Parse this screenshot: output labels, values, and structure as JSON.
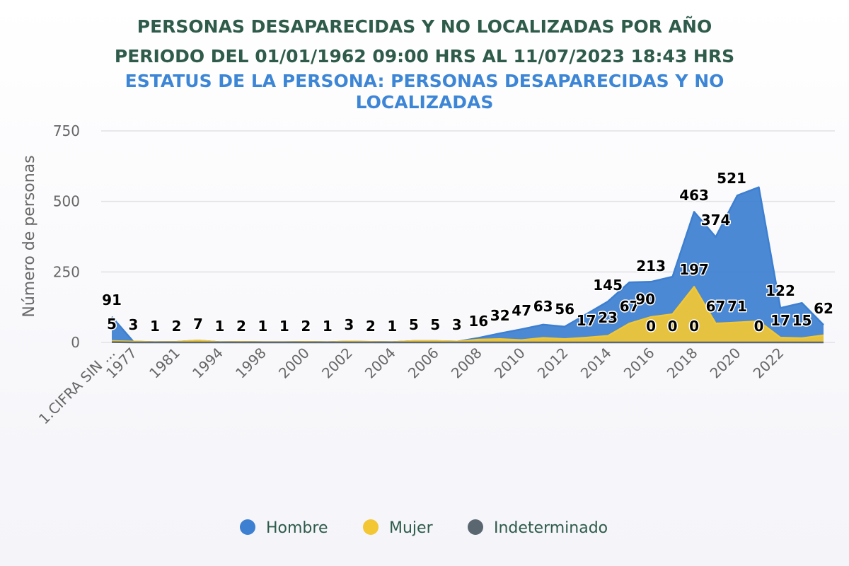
{
  "chart_data": {
    "type": "area",
    "title_lines": [
      "PERSONAS DESAPARECIDAS Y NO LOCALIZADAS POR AÑO",
      "PERIODO DEL 01/01/1962 09:00 HRS AL 11/07/2023 18:43 HRS"
    ],
    "subtitle_lines": [
      "ESTATUS DE LA PERSONA: PERSONAS DESAPARECIDAS Y NO",
      "LOCALIZADAS"
    ],
    "ylabel": "Número de personas",
    "ylim": [
      0,
      750
    ],
    "yticks": [
      "0",
      "250",
      "500",
      "750"
    ],
    "x_tick_labels": [
      "1.CIFRA SIN ...",
      "1977",
      "1981",
      "1994",
      "1998",
      "2000",
      "2002",
      "2004",
      "2006",
      "2008",
      "2010",
      "2012",
      "2014",
      "2016",
      "2018",
      "2020",
      "2022"
    ],
    "grid": true,
    "legend_position": "bottom-center",
    "point_count": 34,
    "series": [
      {
        "name": "Hombre",
        "color": "#3d7fd0",
        "values": [
          91,
          3,
          1,
          2,
          7,
          1,
          2,
          1,
          1,
          2,
          1,
          3,
          2,
          1,
          5,
          5,
          3,
          16,
          32,
          47,
          63,
          56,
          100,
          145,
          213,
          215,
          233,
          463,
          374,
          521,
          550,
          122,
          140,
          62
        ]
      },
      {
        "name": "Mujer",
        "color": "#f2c733",
        "values": [
          5,
          3,
          1,
          2,
          7,
          1,
          2,
          1,
          1,
          2,
          1,
          3,
          2,
          1,
          5,
          5,
          3,
          10,
          12,
          8,
          16,
          12,
          17,
          23,
          67,
          90,
          100,
          197,
          67,
          71,
          75,
          17,
          15,
          25
        ]
      },
      {
        "name": "Indeterminado",
        "color": "#5b6770",
        "values": [
          1,
          0,
          0,
          0,
          0,
          0,
          0,
          0,
          0,
          0,
          0,
          0,
          0,
          0,
          0,
          0,
          0,
          0,
          0,
          0,
          0,
          0,
          0,
          0,
          0,
          0,
          0,
          0,
          0,
          0,
          0,
          0,
          0,
          0
        ]
      }
    ],
    "data_labels": [
      {
        "index": 0,
        "text": "91"
      },
      {
        "index": 0,
        "text": "5"
      },
      {
        "index": 1,
        "text": "3"
      },
      {
        "index": 2,
        "text": "1"
      },
      {
        "index": 3,
        "text": "2"
      },
      {
        "index": 4,
        "text": "7"
      },
      {
        "index": 5,
        "text": "1"
      },
      {
        "index": 6,
        "text": "2"
      },
      {
        "index": 7,
        "text": "1"
      },
      {
        "index": 8,
        "text": "1"
      },
      {
        "index": 9,
        "text": "2"
      },
      {
        "index": 10,
        "text": "1"
      },
      {
        "index": 11,
        "text": "3"
      },
      {
        "index": 12,
        "text": "2"
      },
      {
        "index": 13,
        "text": "1"
      },
      {
        "index": 14,
        "text": "5"
      },
      {
        "index": 15,
        "text": "5"
      },
      {
        "index": 16,
        "text": "3"
      },
      {
        "index": 17,
        "text": "16"
      },
      {
        "index": 18,
        "text": "32"
      },
      {
        "index": 19,
        "text": "47"
      },
      {
        "index": 20,
        "text": "63"
      },
      {
        "index": 21,
        "text": "56"
      },
      {
        "index": 22,
        "text": "17"
      },
      {
        "index": 23,
        "text": "23"
      },
      {
        "index": 23,
        "text": "145"
      },
      {
        "index": 24,
        "text": "67"
      },
      {
        "index": 25,
        "text": "213"
      },
      {
        "index": 25,
        "text": "90"
      },
      {
        "index": 25,
        "text": "0"
      },
      {
        "index": 26,
        "text": "0"
      },
      {
        "index": 27,
        "text": "463"
      },
      {
        "index": 27,
        "text": "197"
      },
      {
        "index": 27,
        "text": "0"
      },
      {
        "index": 28,
        "text": "374"
      },
      {
        "index": 28,
        "text": "67"
      },
      {
        "index": 29,
        "text": "71"
      },
      {
        "index": 29,
        "text": "521"
      },
      {
        "index": 30,
        "text": "0"
      },
      {
        "index": 31,
        "text": "122"
      },
      {
        "index": 31,
        "text": "17"
      },
      {
        "index": 32,
        "text": "15"
      },
      {
        "index": 33,
        "text": "62"
      }
    ]
  }
}
